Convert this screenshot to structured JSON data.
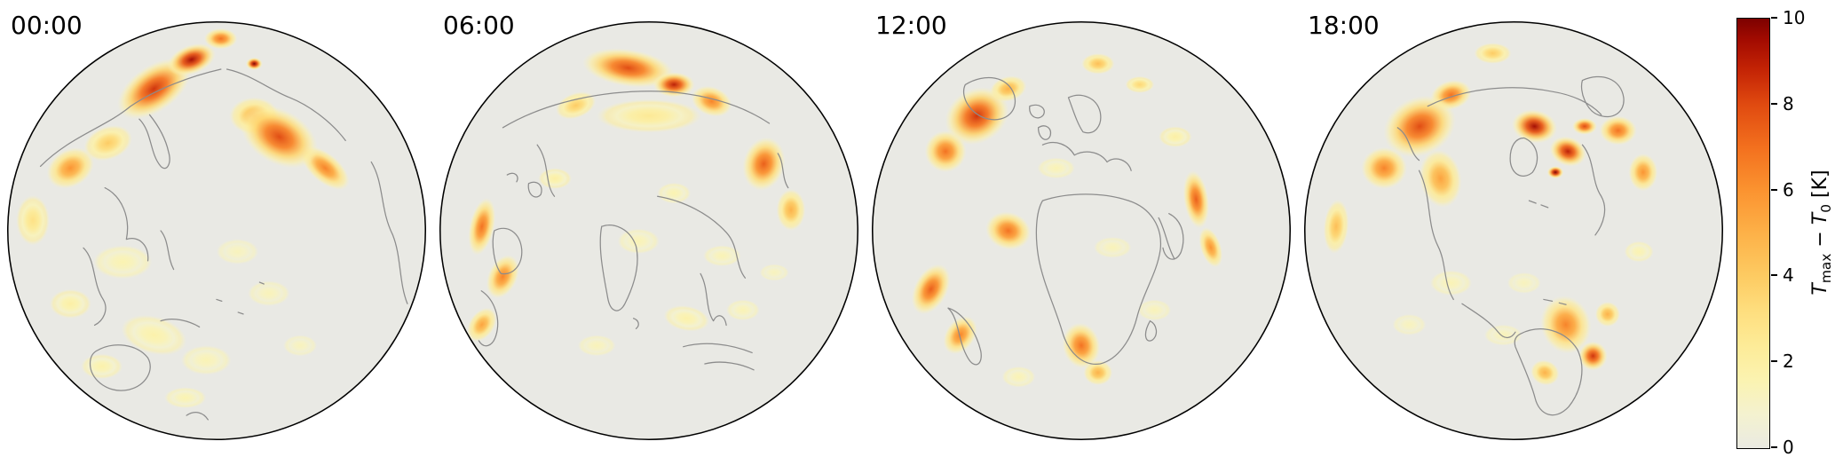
{
  "chart_data": {
    "type": "heatmap",
    "projection": "orthographic-globe",
    "description": "Four orthographic globe views at four UTC times showing daily maximum temperature anomaly T_max - T_0 in Kelvin",
    "panels": [
      {
        "time": "00:00",
        "view": "pacific",
        "coastlines": [
          "M45,175 C80,140 120,130 150,105 C180,85 220,70 255,62",
          "M160,120 C175,135 172,160 185,175 C192,182 198,172 194,158 C190,140 180,125 172,115",
          "M262,62 C290,68 310,85 335,95 C360,105 385,125 400,145",
          "M430,170 C445,195 440,225 455,255 C465,280 462,310 472,335",
          "M120,200 C140,210 150,235 145,260 C160,255 172,268 170,285",
          "M185,250 C195,262 192,280 200,295",
          "M95,270 C110,285 105,310 118,330 C125,342 118,355 108,360",
          "M110,390 C130,378 158,382 170,398 C178,412 168,430 148,435 C125,440 105,425 103,408 C102,398 105,393 110,390",
          "M185,355 C200,350 218,355 230,362",
          "M250,330 l6,2 M275,345 l6,2 M300,310 l5,2",
          "M215,465 C225,458 235,462 240,470"
        ],
        "hotspots": [
          {
            "x": -0.3,
            "y": -0.68,
            "rx": 0.2,
            "ry": 0.11,
            "v": 8.5,
            "rot": -35
          },
          {
            "x": -0.12,
            "y": -0.82,
            "rx": 0.12,
            "ry": 0.07,
            "v": 9.5,
            "rot": -20
          },
          {
            "x": 0.02,
            "y": -0.92,
            "rx": 0.08,
            "ry": 0.05,
            "v": 7,
            "rot": 0
          },
          {
            "x": 0.18,
            "y": -0.8,
            "rx": 0.04,
            "ry": 0.03,
            "v": 10,
            "rot": 0
          },
          {
            "x": 0.3,
            "y": -0.45,
            "rx": 0.2,
            "ry": 0.13,
            "v": 8,
            "rot": 30
          },
          {
            "x": 0.18,
            "y": -0.55,
            "rx": 0.12,
            "ry": 0.09,
            "v": 5,
            "rot": 0
          },
          {
            "x": 0.52,
            "y": -0.3,
            "rx": 0.14,
            "ry": 0.07,
            "v": 6.5,
            "rot": 40
          },
          {
            "x": -0.7,
            "y": -0.3,
            "rx": 0.12,
            "ry": 0.09,
            "v": 6,
            "rot": -30
          },
          {
            "x": -0.52,
            "y": -0.42,
            "rx": 0.12,
            "ry": 0.08,
            "v": 4,
            "rot": -20
          },
          {
            "x": -0.88,
            "y": -0.05,
            "rx": 0.08,
            "ry": 0.12,
            "v": 3,
            "rot": 0
          },
          {
            "x": -0.45,
            "y": 0.15,
            "rx": 0.14,
            "ry": 0.08,
            "v": 1.6,
            "rot": 0
          },
          {
            "x": -0.7,
            "y": 0.35,
            "rx": 0.1,
            "ry": 0.07,
            "v": 2,
            "rot": 0
          },
          {
            "x": -0.3,
            "y": 0.5,
            "rx": 0.16,
            "ry": 0.09,
            "v": 1.8,
            "rot": 15
          },
          {
            "x": -0.05,
            "y": 0.62,
            "rx": 0.12,
            "ry": 0.07,
            "v": 1.5,
            "rot": 0
          },
          {
            "x": 0.25,
            "y": 0.3,
            "rx": 0.1,
            "ry": 0.06,
            "v": 1.4,
            "rot": 0
          },
          {
            "x": 0.1,
            "y": 0.1,
            "rx": 0.1,
            "ry": 0.06,
            "v": 1.3,
            "rot": 0
          },
          {
            "x": -0.55,
            "y": 0.65,
            "rx": 0.1,
            "ry": 0.06,
            "v": 1.8,
            "rot": 0
          },
          {
            "x": 0.4,
            "y": 0.55,
            "rx": 0.08,
            "ry": 0.05,
            "v": 1.3,
            "rot": 0
          },
          {
            "x": -0.15,
            "y": 0.8,
            "rx": 0.1,
            "ry": 0.05,
            "v": 1.6,
            "rot": 0
          }
        ]
      },
      {
        "time": "06:00",
        "view": "asia",
        "coastlines": [
          "M80,130 C130,100 200,85 270,88 C320,92 360,105 390,125",
          "M120,150 C135,170 128,195 140,210",
          "M110,195 C120,190 128,198 124,208 C118,215 108,208 110,195",
          "M85,185 C93,180 100,186 96,193",
          "M70,250 C85,242 100,252 102,272 C103,290 92,302 78,300 C70,290 66,265 70,250",
          "M195,245 C210,240 228,248 235,268 C240,290 232,315 222,335 C215,348 205,345 202,328 C198,305 190,270 195,245",
          "M260,210 C290,215 320,230 340,252 C355,268 350,290 362,305",
          "M310,300 C320,318 315,340 325,355 C330,345 338,348 340,360",
          "M290,385 C315,378 345,382 370,392",
          "M315,405 C335,400 358,405 372,412",
          "M232,352 c6,2 8,8 3,12",
          "M55,320 C70,330 78,352 72,372 C68,385 58,388 52,378",
          "M400,160 C408,172 404,188 412,200"
        ],
        "hotspots": [
          {
            "x": -0.1,
            "y": -0.78,
            "rx": 0.22,
            "ry": 0.09,
            "v": 8,
            "rot": 8
          },
          {
            "x": 0.12,
            "y": -0.7,
            "rx": 0.1,
            "ry": 0.06,
            "v": 9,
            "rot": 0
          },
          {
            "x": 0.3,
            "y": -0.62,
            "rx": 0.1,
            "ry": 0.07,
            "v": 6.5,
            "rot": 20
          },
          {
            "x": -0.35,
            "y": -0.6,
            "rx": 0.1,
            "ry": 0.06,
            "v": 4,
            "rot": -20
          },
          {
            "x": 0.0,
            "y": -0.55,
            "rx": 0.25,
            "ry": 0.08,
            "v": 2.5,
            "rot": 0
          },
          {
            "x": 0.55,
            "y": -0.32,
            "rx": 0.1,
            "ry": 0.13,
            "v": 7.5,
            "rot": 15
          },
          {
            "x": 0.68,
            "y": -0.1,
            "rx": 0.07,
            "ry": 0.1,
            "v": 5,
            "rot": 0
          },
          {
            "x": -0.8,
            "y": -0.02,
            "rx": 0.06,
            "ry": 0.14,
            "v": 7,
            "rot": 12
          },
          {
            "x": -0.7,
            "y": 0.22,
            "rx": 0.07,
            "ry": 0.11,
            "v": 6.5,
            "rot": 25
          },
          {
            "x": -0.8,
            "y": 0.45,
            "rx": 0.06,
            "ry": 0.09,
            "v": 5.5,
            "rot": 35
          },
          {
            "x": -0.05,
            "y": 0.05,
            "rx": 0.1,
            "ry": 0.06,
            "v": 1.5,
            "rot": 0
          },
          {
            "x": 0.12,
            "y": -0.18,
            "rx": 0.08,
            "ry": 0.05,
            "v": 1.6,
            "rot": 0
          },
          {
            "x": 0.35,
            "y": 0.12,
            "rx": 0.09,
            "ry": 0.05,
            "v": 1.5,
            "rot": 0
          },
          {
            "x": 0.18,
            "y": 0.42,
            "rx": 0.11,
            "ry": 0.06,
            "v": 1.8,
            "rot": 10
          },
          {
            "x": 0.45,
            "y": 0.38,
            "rx": 0.08,
            "ry": 0.05,
            "v": 1.5,
            "rot": 0
          },
          {
            "x": -0.25,
            "y": 0.55,
            "rx": 0.09,
            "ry": 0.05,
            "v": 1.4,
            "rot": 0
          },
          {
            "x": -0.45,
            "y": -0.25,
            "rx": 0.08,
            "ry": 0.05,
            "v": 2,
            "rot": 0
          },
          {
            "x": 0.6,
            "y": 0.2,
            "rx": 0.07,
            "ry": 0.04,
            "v": 1.3,
            "rot": 0
          }
        ]
      },
      {
        "time": "12:00",
        "view": "europe-africa",
        "coastlines": [
          "M115,80 C138,66 165,70 172,92 C177,110 163,124 142,120 C122,116 108,94 115,80",
          "M190,105 c10,-4 20,2 16,10 c-6,8 -18,2 -16,-10",
          "M235,95 C250,88 268,95 272,112 C275,128 265,140 252,135 C245,125 240,108 235,95",
          "M205,150 C220,143 235,150 242,162 C255,155 272,158 280,170 C290,162 305,168 308,180",
          "M200,130 c8,-5 16,0 14,9 c-3,9 -14,5 -14,-9",
          "M205,215 C235,205 275,205 305,215 C330,223 345,245 342,272 C338,300 322,322 315,350 C308,378 292,400 272,405 C252,408 235,392 228,368 C220,340 205,310 200,280 C196,255 197,228 205,215",
          "M352,230 C368,238 372,258 366,275 C360,288 348,285 345,270",
          "M340,235 C348,250 350,268 358,282",
          "M95,340 C108,352 106,378 118,398 C126,412 136,406 133,390 C128,368 112,345 95,340",
          "M330,355 c8,4 10,16 3,22 c-8,5 -12,-6 -3,-22"
        ],
        "hotspots": [
          {
            "x": -0.5,
            "y": -0.55,
            "rx": 0.16,
            "ry": 0.13,
            "v": 8.5,
            "rot": -30
          },
          {
            "x": -0.65,
            "y": -0.38,
            "rx": 0.1,
            "ry": 0.1,
            "v": 7,
            "rot": 0
          },
          {
            "x": -0.35,
            "y": -0.68,
            "rx": 0.09,
            "ry": 0.06,
            "v": 5,
            "rot": -15
          },
          {
            "x": 0.08,
            "y": -0.8,
            "rx": 0.08,
            "ry": 0.05,
            "v": 4.5,
            "rot": 0
          },
          {
            "x": 0.28,
            "y": -0.7,
            "rx": 0.07,
            "ry": 0.04,
            "v": 3.5,
            "rot": 0
          },
          {
            "x": 0.55,
            "y": -0.15,
            "rx": 0.06,
            "ry": 0.14,
            "v": 7.5,
            "rot": -8
          },
          {
            "x": 0.62,
            "y": 0.08,
            "rx": 0.05,
            "ry": 0.1,
            "v": 6,
            "rot": -18
          },
          {
            "x": -0.35,
            "y": 0.0,
            "rx": 0.11,
            "ry": 0.09,
            "v": 7,
            "rot": 15
          },
          {
            "x": -0.72,
            "y": 0.28,
            "rx": 0.08,
            "ry": 0.13,
            "v": 7.5,
            "rot": 28
          },
          {
            "x": -0.58,
            "y": 0.5,
            "rx": 0.07,
            "ry": 0.1,
            "v": 6.5,
            "rot": 35
          },
          {
            "x": 0.0,
            "y": 0.55,
            "rx": 0.09,
            "ry": 0.11,
            "v": 7,
            "rot": -12
          },
          {
            "x": 0.08,
            "y": 0.68,
            "rx": 0.07,
            "ry": 0.06,
            "v": 5,
            "rot": 0
          },
          {
            "x": 0.15,
            "y": 0.08,
            "rx": 0.09,
            "ry": 0.05,
            "v": 1.4,
            "rot": 0
          },
          {
            "x": -0.12,
            "y": -0.3,
            "rx": 0.09,
            "ry": 0.05,
            "v": 1.5,
            "rot": 0
          },
          {
            "x": 0.35,
            "y": 0.38,
            "rx": 0.08,
            "ry": 0.05,
            "v": 1.4,
            "rot": 0
          },
          {
            "x": -0.3,
            "y": 0.7,
            "rx": 0.08,
            "ry": 0.05,
            "v": 1.5,
            "rot": 0
          },
          {
            "x": 0.45,
            "y": -0.45,
            "rx": 0.08,
            "ry": 0.05,
            "v": 2,
            "rot": 0
          }
        ]
      },
      {
        "time": "18:00",
        "view": "americas",
        "coastlines": [
          "M150,105 C190,85 245,78 295,88 C320,92 340,102 352,115",
          "M115,130 C130,140 128,158 140,168",
          "M262,142 C278,148 282,168 272,182 C260,192 246,184 246,166 C246,152 252,142 262,142",
          "M268,215 l8,3 m6,2 l8,3",
          "M330,150 C345,168 340,192 352,210 C360,224 355,242 345,255",
          "M140,180 C155,210 148,240 162,268 C172,288 168,310 180,330",
          "M190,335 C205,345 222,355 232,368 C240,378 248,375 252,368",
          "M285,330 l10,2 m8,2 l8,2",
          "M258,370 C282,358 310,366 324,388 C334,408 330,435 314,455 C298,472 280,465 275,445 C270,425 258,400 252,385 C250,378 252,373 258,370",
          "M330,75 C352,65 375,73 378,95 C380,112 365,122 348,115 C335,110 326,88 330,75"
        ],
        "hotspots": [
          {
            "x": -0.45,
            "y": -0.5,
            "rx": 0.18,
            "ry": 0.14,
            "v": 8,
            "rot": -25
          },
          {
            "x": -0.62,
            "y": -0.3,
            "rx": 0.11,
            "ry": 0.1,
            "v": 6.5,
            "rot": 0
          },
          {
            "x": -0.3,
            "y": -0.65,
            "rx": 0.1,
            "ry": 0.07,
            "v": 7,
            "rot": -15
          },
          {
            "x": -0.35,
            "y": -0.25,
            "rx": 0.1,
            "ry": 0.14,
            "v": 5.5,
            "rot": -10
          },
          {
            "x": 0.1,
            "y": -0.5,
            "rx": 0.11,
            "ry": 0.08,
            "v": 9.5,
            "rot": 10
          },
          {
            "x": 0.26,
            "y": -0.38,
            "rx": 0.09,
            "ry": 0.07,
            "v": 9,
            "rot": 20
          },
          {
            "x": 0.2,
            "y": -0.28,
            "rx": 0.04,
            "ry": 0.03,
            "v": 10,
            "rot": 0
          },
          {
            "x": 0.34,
            "y": -0.5,
            "rx": 0.06,
            "ry": 0.04,
            "v": 8,
            "rot": 0
          },
          {
            "x": 0.5,
            "y": -0.48,
            "rx": 0.09,
            "ry": 0.07,
            "v": 7,
            "rot": 0
          },
          {
            "x": 0.62,
            "y": -0.28,
            "rx": 0.07,
            "ry": 0.09,
            "v": 6,
            "rot": 0
          },
          {
            "x": -0.1,
            "y": -0.85,
            "rx": 0.09,
            "ry": 0.05,
            "v": 4,
            "rot": 0
          },
          {
            "x": -0.85,
            "y": -0.02,
            "rx": 0.06,
            "ry": 0.13,
            "v": 4.5,
            "rot": 5
          },
          {
            "x": 0.25,
            "y": 0.45,
            "rx": 0.12,
            "ry": 0.14,
            "v": 6.5,
            "rot": -15
          },
          {
            "x": 0.38,
            "y": 0.6,
            "rx": 0.07,
            "ry": 0.07,
            "v": 8.5,
            "rot": 0
          },
          {
            "x": 0.15,
            "y": 0.68,
            "rx": 0.07,
            "ry": 0.06,
            "v": 5,
            "rot": 20
          },
          {
            "x": 0.45,
            "y": 0.4,
            "rx": 0.06,
            "ry": 0.06,
            "v": 5,
            "rot": 0
          },
          {
            "x": -0.3,
            "y": 0.25,
            "rx": 0.1,
            "ry": 0.06,
            "v": 1.5,
            "rot": 0
          },
          {
            "x": -0.05,
            "y": 0.5,
            "rx": 0.09,
            "ry": 0.05,
            "v": 1.4,
            "rot": 0
          },
          {
            "x": 0.6,
            "y": 0.1,
            "rx": 0.07,
            "ry": 0.05,
            "v": 1.6,
            "rot": 0
          },
          {
            "x": -0.5,
            "y": 0.45,
            "rx": 0.08,
            "ry": 0.05,
            "v": 1.3,
            "rot": 0
          },
          {
            "x": 0.05,
            "y": 0.25,
            "rx": 0.08,
            "ry": 0.05,
            "v": 1.3,
            "rot": 0
          }
        ]
      }
    ],
    "colorbar": {
      "min": 0,
      "max": 10,
      "ticks": [
        0,
        2,
        4,
        6,
        8,
        10
      ],
      "label": {
        "t1": "T",
        "sub1": "max",
        "minus": " − ",
        "t2": "T",
        "sub2": "0",
        "unit": " [K]"
      }
    },
    "colormap": {
      "name": "YlOrRd-like",
      "stops": [
        [
          0,
          "#eaeae2"
        ],
        [
          0.8,
          "#f4f2cf"
        ],
        [
          1.6,
          "#fbf3b0"
        ],
        [
          2.4,
          "#fdeb97"
        ],
        [
          3.2,
          "#fede7e"
        ],
        [
          4,
          "#fdcb62"
        ],
        [
          5,
          "#fdb148"
        ],
        [
          6,
          "#fb9330"
        ],
        [
          7,
          "#f3701e"
        ],
        [
          8,
          "#e04a10"
        ],
        [
          8.8,
          "#c42405"
        ],
        [
          9.5,
          "#a30b01"
        ],
        [
          10,
          "#7d0100"
        ]
      ]
    },
    "colors": {
      "background": "#ffffff",
      "ocean": "#e9e9e4",
      "coastline": "#8c8c8c",
      "globe_outline": "#000000"
    }
  }
}
